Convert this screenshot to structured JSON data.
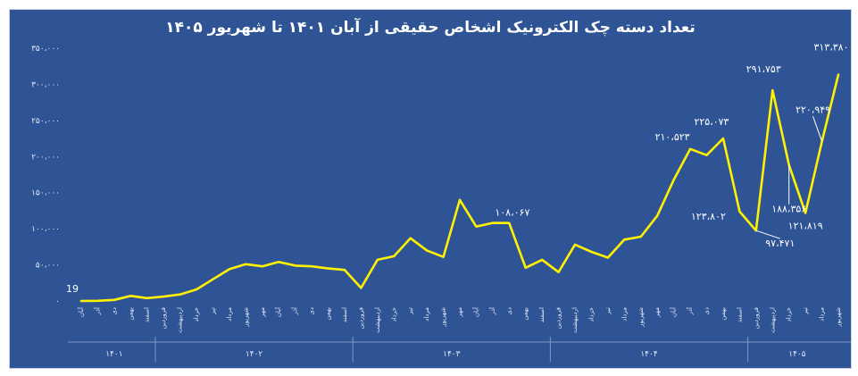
{
  "chart_data": {
    "type": "line",
    "title": "تعداد دسته چک الکترونیک اشخاص حقیقی از آبان ۱۴۰۱ تا شهریور ۱۴۰۵",
    "xlabel": "",
    "ylabel": "",
    "ylim": [
      0,
      350000
    ],
    "yticks": [
      {
        "value": 0,
        "label": "۰"
      },
      {
        "value": 50000,
        "label": "۵۰،۰۰۰"
      },
      {
        "value": 100000,
        "label": "۱۰۰،۰۰۰"
      },
      {
        "value": 150000,
        "label": "۱۵۰،۰۰۰"
      },
      {
        "value": 200000,
        "label": "۲۰۰،۰۰۰"
      },
      {
        "value": 250000,
        "label": "۲۵۰،۰۰۰"
      },
      {
        "value": 300000,
        "label": "۳۰۰،۰۰۰"
      },
      {
        "value": 350000,
        "label": "۳۵۰،۰۰۰"
      }
    ],
    "categories": [
      "آبان",
      "آذر",
      "دی",
      "بهمن",
      "اسفند",
      "فروردین",
      "اردیبهشت",
      "خرداد",
      "تیر",
      "مرداد",
      "شهریور",
      "مهر",
      "آبان",
      "آذر",
      "دی",
      "بهمن",
      "اسفند",
      "فروردین",
      "اردیبهشت",
      "خرداد",
      "تیر",
      "مرداد",
      "شهریور",
      "مهر",
      "آبان",
      "آذر",
      "دی",
      "بهمن",
      "اسفند",
      "فروردین",
      "اردیبهشت",
      "خرداد",
      "تیر",
      "مرداد",
      "شهریور",
      "مهر",
      "آبان",
      "آذر",
      "دی",
      "بهمن",
      "اسفند",
      "فروردین",
      "اردیبهشت",
      "خرداد",
      "تیر",
      "مرداد",
      "شهریور"
    ],
    "years": [
      {
        "label": "۱۴۰۱",
        "start": 0,
        "end": 4
      },
      {
        "label": "۱۴۰۲",
        "start": 5,
        "end": 16
      },
      {
        "label": "۱۴۰۳",
        "start": 17,
        "end": 28
      },
      {
        "label": "۱۴۰۴",
        "start": 29,
        "end": 40
      },
      {
        "label": "۱۴۰۵",
        "start": 41,
        "end": 46
      }
    ],
    "series": [
      {
        "values": [
          19,
          300,
          1500,
          7000,
          4000,
          6000,
          9000,
          16000,
          30000,
          44000,
          51000,
          48000,
          54000,
          49000,
          48000,
          45000,
          43000,
          18000,
          57000,
          62000,
          87000,
          70000,
          61000,
          140000,
          103000,
          108067,
          108000,
          46000,
          57000,
          40000,
          78000,
          68000,
          60000,
          85000,
          89000,
          118000,
          168000,
          210523,
          202000,
          225073,
          123802,
          97471,
          291753,
          188356,
          121819,
          220949,
          313380
        ],
        "color": "#FFF200"
      }
    ],
    "data_labels": [
      {
        "index": 0,
        "text": "19"
      },
      {
        "index": 25,
        "text": "۱۰۸،۰۶۷"
      },
      {
        "index": 37,
        "text": "۲۱۰،۵۲۳"
      },
      {
        "index": 39,
        "text": "۲۲۵،۰۷۳"
      },
      {
        "index": 40,
        "text": "۱۲۳،۸۰۲"
      },
      {
        "index": 41,
        "text": "۹۷،۴۷۱"
      },
      {
        "index": 42,
        "text": "۲۹۱،۷۵۳"
      },
      {
        "index": 43,
        "text": "۱۸۸،۳۵۶"
      },
      {
        "index": 44,
        "text": "۱۲۱،۸۱۹"
      },
      {
        "index": 45,
        "text": "۲۲۰،۹۴۹"
      },
      {
        "index": 46,
        "text": "۳۱۳،۳۸۰"
      }
    ],
    "grid": false,
    "legend": "none",
    "background": "#2F5496"
  }
}
